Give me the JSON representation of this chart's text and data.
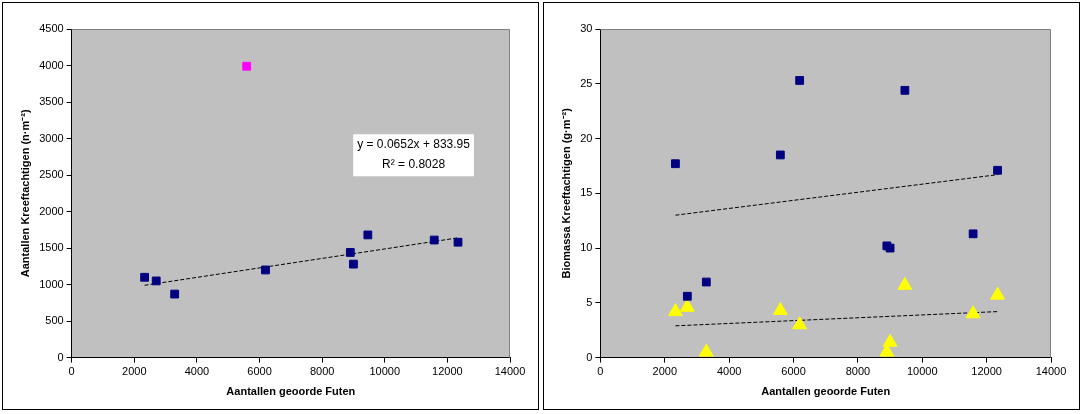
{
  "chart_data": [
    {
      "type": "scatter",
      "xlabel": "Aantallen geoorde Futen",
      "ylabel": "Aantallen Kreeftachtigen (n·m⁻²)",
      "xlim": [
        0,
        14000
      ],
      "xticks": [
        0,
        2000,
        4000,
        6000,
        8000,
        10000,
        12000,
        14000
      ],
      "ylim": [
        0,
        4500
      ],
      "yticks": [
        0,
        500,
        1000,
        1500,
        2000,
        2500,
        3000,
        3500,
        4000,
        4500
      ],
      "grid": false,
      "legend": false,
      "annotations": [
        "y = 0.0652x + 833.95",
        "R² = 0.8028"
      ],
      "series": [
        {
          "color": "#000080",
          "marker": "square",
          "x": [
            2330,
            2700,
            3290,
            6190,
            8900,
            9000,
            9460,
            11580,
            12340
          ],
          "values": [
            1100,
            1050,
            870,
            1200,
            1440,
            1280,
            1680,
            1610,
            1580
          ]
        },
        {
          "color": "#ff00ff",
          "marker": "square",
          "x": [
            5590
          ],
          "values": [
            3990
          ]
        },
        {
          "type": "line",
          "color": "#000000",
          "line_style": "dashed",
          "marker": "none",
          "x": [
            2330,
            12340
          ],
          "values": [
            990,
            1640
          ]
        }
      ]
    },
    {
      "type": "scatter",
      "xlabel": "Aantallen geoorde Futen",
      "ylabel": "Biomassa Kreeftachtigen (g·m⁻²)",
      "xlim": [
        0,
        14000
      ],
      "xticks": [
        0,
        2000,
        4000,
        6000,
        8000,
        10000,
        12000,
        14000
      ],
      "ylim": [
        0,
        30
      ],
      "yticks": [
        0,
        5,
        10,
        15,
        20,
        25,
        30
      ],
      "grid": false,
      "legend": false,
      "series": [
        {
          "color": "#000080",
          "marker": "square",
          "x": [
            2330,
            2700,
            3290,
            5590,
            6190,
            8900,
            9000,
            9460,
            11580,
            12340
          ],
          "values": [
            17.7,
            5.6,
            6.9,
            18.5,
            25.3,
            10.2,
            10.0,
            24.4,
            11.3,
            17.1
          ]
        },
        {
          "color": "#ffff00",
          "marker": "triangle",
          "x": [
            2330,
            2700,
            3290,
            5590,
            6190,
            8900,
            9000,
            9460,
            11580,
            12340
          ],
          "values": [
            4.2,
            4.6,
            0.5,
            4.3,
            3.0,
            0.5,
            1.4,
            6.6,
            4.0,
            5.7
          ]
        },
        {
          "type": "line",
          "color": "#000000",
          "line_style": "dashed",
          "marker": "none",
          "x": [
            2330,
            12340
          ],
          "values": [
            13.0,
            16.7
          ]
        },
        {
          "type": "line",
          "color": "#000000",
          "line_style": "dashed",
          "marker": "none",
          "x": [
            2330,
            12340
          ],
          "values": [
            2.9,
            4.2
          ]
        }
      ]
    }
  ]
}
